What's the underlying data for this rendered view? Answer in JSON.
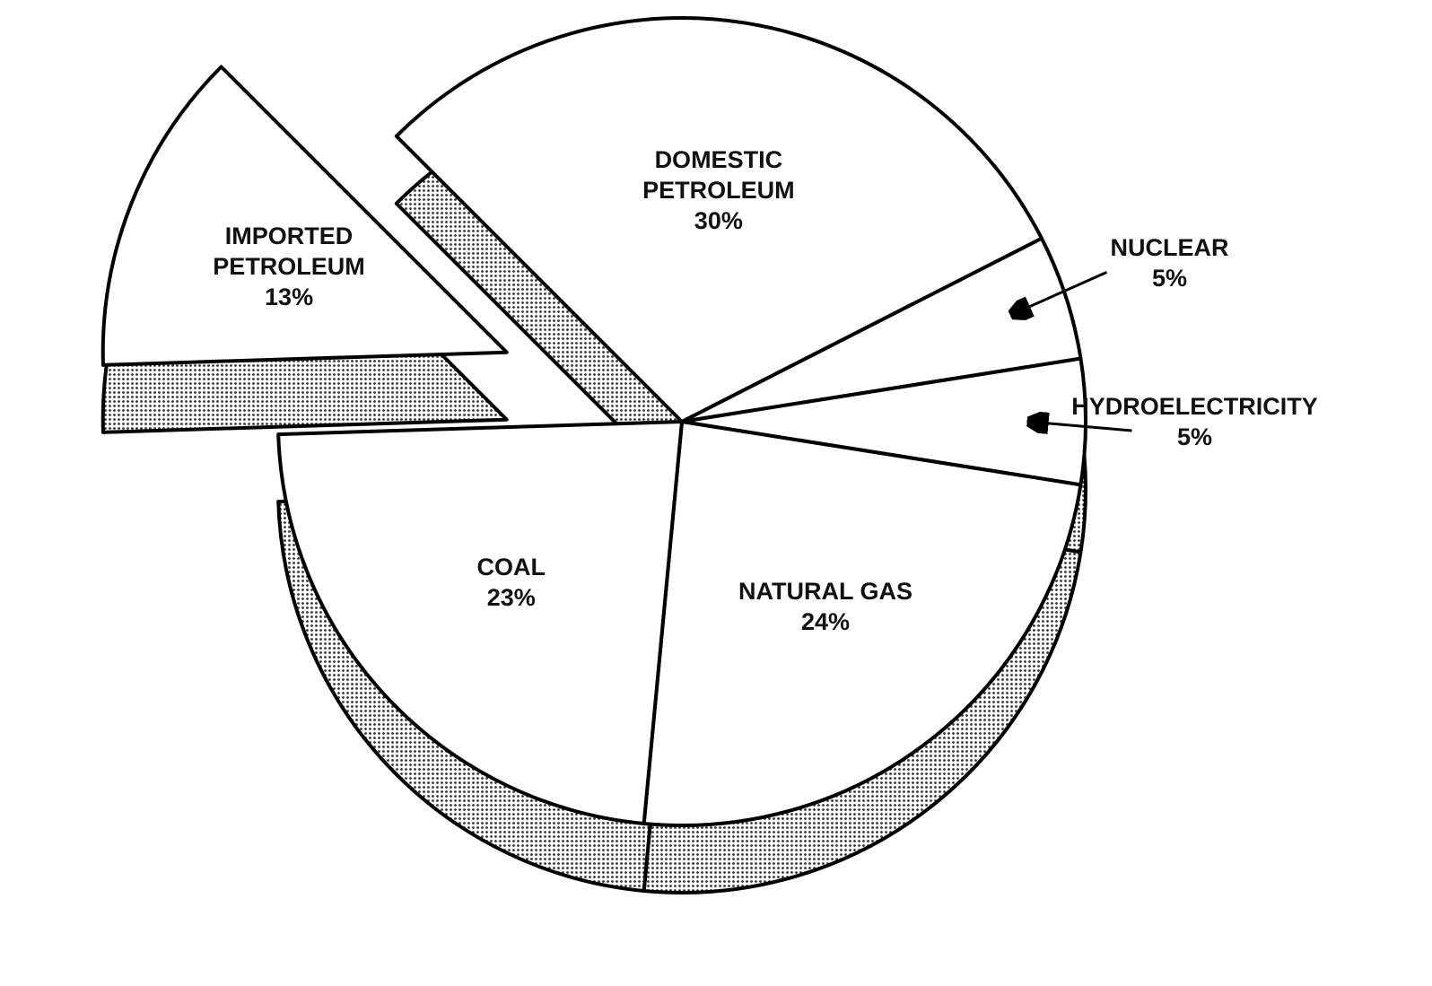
{
  "chart_data": {
    "type": "pie",
    "categories": [
      "IMPORTED PETROLEUM",
      "DOMESTIC PETROLEUM",
      "NUCLEAR",
      "HYDROELECTRICITY",
      "NATURAL GAS",
      "COAL"
    ],
    "values": [
      13,
      30,
      5,
      5,
      24,
      23
    ],
    "value_labels": [
      "13%",
      "30%",
      "5%",
      "5%",
      "24%",
      "23%"
    ],
    "color": "#ffffff",
    "exploded": [
      0
    ]
  }
}
